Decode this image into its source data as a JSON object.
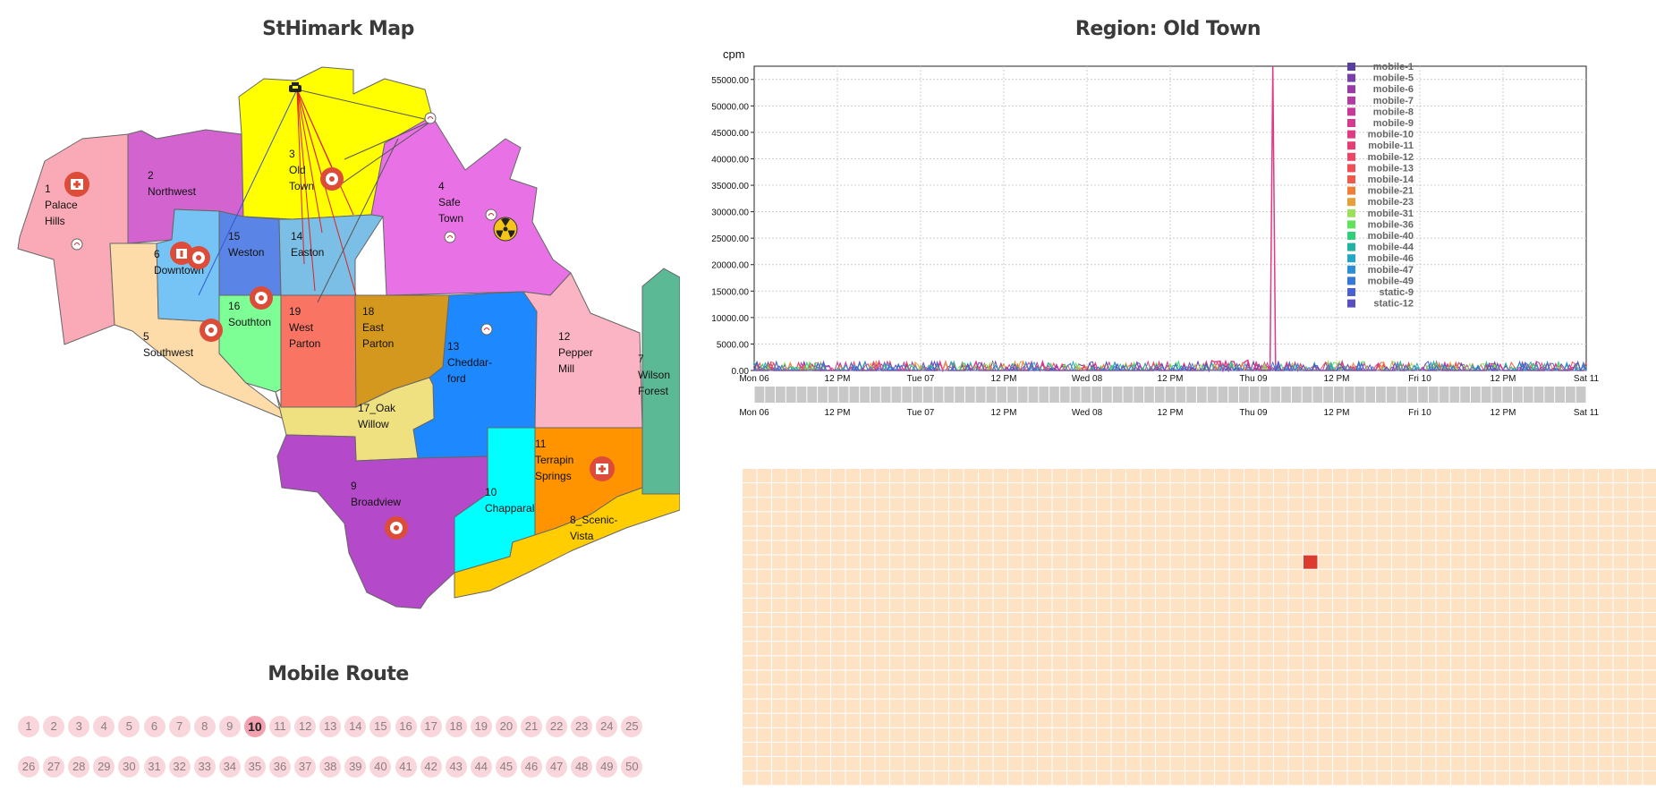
{
  "titles": {
    "map": "StHimark Map",
    "region": "Region: Old Town",
    "route": "Mobile Route"
  },
  "map": {
    "regions": [
      {
        "id": "palace-hills",
        "lines": [
          "1",
          "Palace",
          "Hills"
        ],
        "color": "#f9aab6"
      },
      {
        "id": "northwest",
        "lines": [
          "2",
          "Northwest"
        ],
        "color": "#d363cf"
      },
      {
        "id": "old-town",
        "lines": [
          "3",
          "Old",
          "Town"
        ],
        "color": "#ffff00"
      },
      {
        "id": "safe-town",
        "lines": [
          "4",
          "Safe",
          "Town"
        ],
        "color": "#e971e6"
      },
      {
        "id": "southwest",
        "lines": [
          "5",
          "Southwest"
        ],
        "color": "#fddcaa"
      },
      {
        "id": "downtown",
        "lines": [
          "6",
          "Downtown"
        ],
        "color": "#75c4f5"
      },
      {
        "id": "wilson-forest",
        "lines": [
          "7",
          "Wilson",
          "Forest"
        ],
        "color": "#5cb996"
      },
      {
        "id": "scenic-vista",
        "lines": [
          "8_Scenic-",
          "Vista"
        ],
        "color": "#ffcd00"
      },
      {
        "id": "broadview",
        "lines": [
          "9",
          "Broadview"
        ],
        "color": "#b449c9"
      },
      {
        "id": "chapparal",
        "lines": [
          "10",
          "Chapparal"
        ],
        "color": "#00ffff"
      },
      {
        "id": "terrapin-springs",
        "lines": [
          "11",
          "Terrapin",
          "Springs"
        ],
        "color": "#ff9400"
      },
      {
        "id": "pepper-mill",
        "lines": [
          "12",
          "Pepper",
          "Mill"
        ],
        "color": "#fbb4c3"
      },
      {
        "id": "cheddarford",
        "lines": [
          "13",
          "Cheddar-",
          "ford"
        ],
        "color": "#1e88ff"
      },
      {
        "id": "easton",
        "lines": [
          "14",
          "Easton"
        ],
        "color": "#7bbfe6"
      },
      {
        "id": "weston",
        "lines": [
          "15",
          "Weston"
        ],
        "color": "#5a84e6"
      },
      {
        "id": "southton",
        "lines": [
          "16",
          "Southton"
        ],
        "color": "#7dff96"
      },
      {
        "id": "oak-willow",
        "lines": [
          "17_Oak",
          "Willow"
        ],
        "color": "#f0e180"
      },
      {
        "id": "east-parton",
        "lines": [
          "18",
          "East",
          "Parton"
        ],
        "color": "#d4981f"
      },
      {
        "id": "west-parton",
        "lines": [
          "19",
          "West",
          "Parton"
        ],
        "color": "#f97462"
      }
    ],
    "icons": {
      "hospital": "hospital-icon",
      "sensor": "sensor-icon",
      "nuclear": "nuclear-plant-icon",
      "vehicle": "vehicle-icon",
      "hospital_color": "#dd4b39",
      "nuclear_color": "#f5c518"
    }
  },
  "route": {
    "row1": [
      "1",
      "2",
      "3",
      "4",
      "5",
      "6",
      "7",
      "8",
      "9",
      "10",
      "11",
      "12",
      "13",
      "14",
      "15",
      "16",
      "17",
      "18",
      "19",
      "20",
      "21",
      "22",
      "23",
      "24",
      "25"
    ],
    "row2": [
      "26",
      "27",
      "28",
      "29",
      "30",
      "31",
      "32",
      "33",
      "34",
      "35",
      "36",
      "37",
      "38",
      "39",
      "40",
      "41",
      "42",
      "43",
      "44",
      "45",
      "46",
      "47",
      "48",
      "49",
      "50"
    ],
    "selected": "10"
  },
  "chart_data": {
    "type": "line",
    "title": "Region: Old Town",
    "ylabel": "cpm",
    "xlabel": "",
    "ylim": [
      0,
      57500
    ],
    "y_ticks": [
      "0.00",
      "5000.00",
      "10000.00",
      "15000.00",
      "20000.00",
      "25000.00",
      "30000.00",
      "35000.00",
      "40000.00",
      "45000.00",
      "50000.00",
      "55000.00"
    ],
    "x_ticks": [
      "Mon 06",
      "12 PM",
      "Tue 07",
      "12 PM",
      "Wed 08",
      "12 PM",
      "Thu 09",
      "12 PM",
      "Fri 10",
      "12 PM",
      "Sat 11"
    ],
    "grid": true,
    "legend_position": "right",
    "series": [
      {
        "name": "mobile-1",
        "color": "#5b3fa0"
      },
      {
        "name": "mobile-5",
        "color": "#7a3fa8"
      },
      {
        "name": "mobile-6",
        "color": "#9a3aa6"
      },
      {
        "name": "mobile-7",
        "color": "#b23aa2"
      },
      {
        "name": "mobile-8",
        "color": "#c7389a"
      },
      {
        "name": "mobile-9",
        "color": "#d6398f"
      },
      {
        "name": "mobile-10",
        "color": "#e13a82"
      },
      {
        "name": "mobile-11",
        "color": "#e83c73"
      },
      {
        "name": "mobile-12",
        "color": "#ee4465"
      },
      {
        "name": "mobile-13",
        "color": "#f04f58"
      },
      {
        "name": "mobile-14",
        "color": "#f05a4b"
      },
      {
        "name": "mobile-21",
        "color": "#ef7f37"
      },
      {
        "name": "mobile-23",
        "color": "#e6a03a"
      },
      {
        "name": "mobile-31",
        "color": "#9be05a"
      },
      {
        "name": "mobile-36",
        "color": "#5fe35a"
      },
      {
        "name": "mobile-40",
        "color": "#2ed07a"
      },
      {
        "name": "mobile-44",
        "color": "#1fb4a4"
      },
      {
        "name": "mobile-46",
        "color": "#22a7c9"
      },
      {
        "name": "mobile-47",
        "color": "#2a8fd6"
      },
      {
        "name": "mobile-49",
        "color": "#3478d9"
      },
      {
        "name": "static-9",
        "color": "#4a60d0"
      },
      {
        "name": "static-12",
        "color": "#5a4fc2"
      }
    ],
    "peak": {
      "series": "mobile-10",
      "time_fraction": 0.623,
      "value": 57500
    }
  },
  "heatmap": {
    "rows": [
      "mobile-1",
      "mobile-5",
      "mobile-6",
      "mobile-7",
      "mobile-8",
      "mobile-9",
      "mobile-10",
      "mobile-11",
      "mobile-12",
      "mobile-13",
      "mobile-14",
      "mobile-21",
      "mobile-23",
      "mobile-31",
      "mobile-36",
      "mobile-40",
      "mobile-44",
      "mobile-46",
      "mobile-47",
      "mobile-49",
      "static-9",
      "static-12"
    ],
    "columns": 62,
    "base_color": "#fde2c4",
    "highlight_color": "#dc3c2e",
    "highlight": {
      "row": "mobile-10",
      "column": 38
    }
  }
}
